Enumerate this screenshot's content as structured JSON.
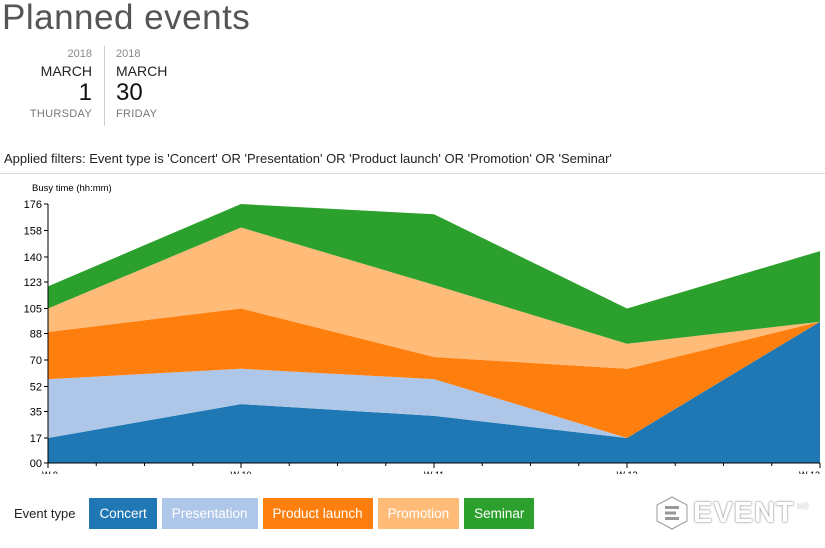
{
  "title": "Planned events",
  "date_range": {
    "start": {
      "year": "2018",
      "month": "MARCH",
      "day": "1",
      "weekday": "THURSDAY"
    },
    "end": {
      "year": "2018",
      "month": "MARCH",
      "day": "30",
      "weekday": "FRIDAY"
    }
  },
  "filters_text": "Applied filters: Event type is 'Concert' OR 'Presentation' OR 'Product launch' OR 'Promotion' OR 'Seminar'",
  "legend": {
    "label": "Event type",
    "items": [
      {
        "label": "Concert",
        "color": "#1f77b4"
      },
      {
        "label": "Presentation",
        "color": "#aec7e8"
      },
      {
        "label": "Product launch",
        "color": "#ff7f0e"
      },
      {
        "label": "Promotion",
        "color": "#ffbb78"
      },
      {
        "label": "Seminar",
        "color": "#2ca02c"
      }
    ]
  },
  "logo": {
    "text": "EVENT",
    "sup": "MB"
  },
  "chart_data": {
    "type": "area",
    "stacked": true,
    "ylabel": "Busy time (hh:mm)",
    "x": [
      "W 9",
      "W 10",
      "W 11",
      "W 12",
      "W 13"
    ],
    "yticks": [
      "00",
      "17",
      "35",
      "52",
      "70",
      "88",
      "105",
      "123",
      "140",
      "158",
      "176"
    ],
    "ylim": [
      0,
      176
    ],
    "grid": false,
    "series": [
      {
        "name": "Concert",
        "color": "#1f77b4",
        "values": [
          17,
          40,
          32,
          17,
          96
        ]
      },
      {
        "name": "Presentation",
        "color": "#aec7e8",
        "values": [
          40,
          24,
          25,
          0,
          0
        ]
      },
      {
        "name": "Product launch",
        "color": "#ff7f0e",
        "values": [
          32,
          41,
          15,
          47,
          0
        ]
      },
      {
        "name": "Promotion",
        "color": "#ffbb78",
        "values": [
          16,
          55,
          49,
          17,
          0
        ]
      },
      {
        "name": "Seminar",
        "color": "#2ca02c",
        "values": [
          15,
          16,
          48,
          24,
          48
        ]
      }
    ]
  }
}
